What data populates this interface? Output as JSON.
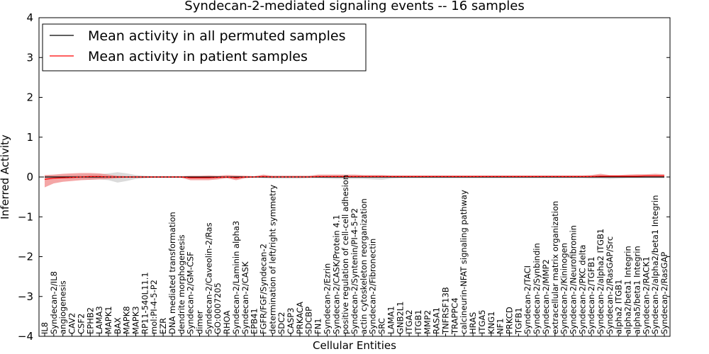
{
  "chart_data": {
    "type": "line",
    "title": "Syndecan-2-mediated signaling events -- 16 samples",
    "xlabel": "Cellular Entities",
    "ylabel": "Inferred Activity",
    "ylim": [
      -4,
      4
    ],
    "yticks": [
      -4,
      -3,
      -2,
      -1,
      0,
      1,
      2,
      3,
      4
    ],
    "ytick_labels": [
      "−4",
      "−3",
      "−2",
      "−1",
      "0",
      "1",
      "2",
      "3",
      "4"
    ],
    "legend_position": "top-left",
    "categories": [
      "IL8",
      "Syndecan-2/IL8",
      "angiogenesis",
      "CAV2",
      "CSF2",
      "EPHB2",
      "LAMA3",
      "MAPK1",
      "BAX",
      "MAPK8",
      "MAPK3",
      "RP11-540L11.1",
      "mol:PI-4-5-P2",
      "EZR",
      "DNA mediated transformation",
      "dendrite morphogenesis",
      "Syndecan-2/GM-CSF",
      "dimer",
      "Syndecan-2/Caveolin-2/Ras",
      "GO:0007205",
      "RHOA",
      "Syndecan-2/Laminin alpha3",
      "Syndecan-2/CASK",
      "EPB41",
      "FGFR/FGF/Syndecan-2",
      "determination of left/right symmetry",
      "SDC2",
      "CASP3",
      "PRKACA",
      "SDCBP",
      "FN1",
      "Syndecan-2/Ezrin",
      "Syndecan-2/CASK/Protein 4.1",
      "positive regulation of cell-cell adhesion",
      "Syndecan-2/Syntenin/PI-4-5-P2",
      "actin cytoskeleton reorganization",
      "Syndecan-2/Fibronectin",
      "SRC",
      "LAMA1",
      "GNB2L1",
      "ITGA2",
      "ITGB1",
      "MMP2",
      "RASA1",
      "TNFRSF13B",
      "TRAPPC4",
      "calcineurin-NFAT signaling pathway",
      "HRAS",
      "ITGA5",
      "KNG1",
      "NF1",
      "PRKCD",
      "TGFB1",
      "Syndecan-2/TACI",
      "Syndecan-2/Synbindin",
      "Syndecan-2/MMP2",
      "extracellular matrix organization",
      "Syndecan-2/Kininogen",
      "Syndecan-2/Neurofibromin",
      "Syndecan-2/PKC delta",
      "Syndecan-2/TGFB1",
      "Syndecan-2/alpha2 ITGB1",
      "Syndecan-2/RasGAP/Src",
      "alpha2 ITGB1",
      "alpha2/beta1 Integrin",
      "alpha5/beta1 Integrin",
      "Syndecan-2/RACK1",
      "Syndecan-2/alpha2/beta1 Integrin",
      "Syndecan-2/RasGAP"
    ],
    "series": [
      {
        "name": "Mean activity in all permuted samples",
        "color": "#000000",
        "band_color": "#c8c8c8",
        "values": [
          0.0,
          0.0,
          0.0,
          0.0,
          0.0,
          0.0,
          0.0,
          0.0,
          0.0,
          0.0,
          0.0,
          0.0,
          0.0,
          0.0,
          0.0,
          0.0,
          0.0,
          0.0,
          0.0,
          0.0,
          0.0,
          0.0,
          0.0,
          0.0,
          0.0,
          0.0,
          0.0,
          0.0,
          0.0,
          0.0,
          0.0,
          0.0,
          0.0,
          0.0,
          0.0,
          0.0,
          0.0,
          0.0,
          0.0,
          0.0,
          0.0,
          0.0,
          0.0,
          0.0,
          0.0,
          0.0,
          0.0,
          0.0,
          0.0,
          0.0,
          0.0,
          0.0,
          0.0,
          0.0,
          0.0,
          0.0,
          0.0,
          0.0,
          0.0,
          0.0,
          0.0,
          0.0,
          0.0,
          0.0,
          0.0,
          0.0,
          0.0,
          0.0,
          0.0
        ],
        "lower": [
          -0.05,
          -0.04,
          -0.04,
          -0.05,
          -0.06,
          -0.07,
          -0.06,
          -0.08,
          -0.14,
          -0.1,
          -0.05,
          -0.03,
          -0.02,
          -0.02,
          -0.02,
          -0.02,
          -0.02,
          -0.02,
          -0.02,
          -0.02,
          -0.02,
          -0.02,
          -0.02,
          -0.02,
          -0.03,
          -0.04,
          -0.04,
          -0.04,
          -0.04,
          -0.03,
          -0.03,
          -0.04,
          -0.05,
          -0.05,
          -0.05,
          -0.05,
          -0.06,
          -0.07,
          -0.04,
          -0.03,
          -0.03,
          -0.03,
          -0.03,
          -0.03,
          -0.03,
          -0.03,
          -0.03,
          -0.03,
          -0.03,
          -0.03,
          -0.03,
          -0.03,
          -0.03,
          -0.03,
          -0.03,
          -0.03,
          -0.03,
          -0.03,
          -0.03,
          -0.03,
          -0.04,
          -0.04,
          -0.05,
          -0.04,
          -0.03,
          -0.03,
          -0.03,
          -0.03,
          -0.03
        ],
        "upper": [
          0.04,
          0.04,
          0.04,
          0.05,
          0.06,
          0.07,
          0.07,
          0.09,
          0.12,
          0.09,
          0.05,
          0.03,
          0.02,
          0.02,
          0.02,
          0.02,
          0.02,
          0.02,
          0.02,
          0.02,
          0.02,
          0.02,
          0.02,
          0.02,
          0.03,
          0.03,
          0.03,
          0.03,
          0.03,
          0.03,
          0.03,
          0.03,
          0.04,
          0.04,
          0.04,
          0.04,
          0.04,
          0.04,
          0.03,
          0.03,
          0.03,
          0.03,
          0.03,
          0.03,
          0.03,
          0.03,
          0.03,
          0.03,
          0.03,
          0.03,
          0.03,
          0.03,
          0.03,
          0.03,
          0.03,
          0.03,
          0.03,
          0.03,
          0.03,
          0.03,
          0.03,
          0.03,
          0.03,
          0.03,
          0.03,
          0.03,
          0.03,
          0.03,
          0.03
        ]
      },
      {
        "name": "Mean activity in patient samples",
        "color": "#ff0000",
        "band_color": "#f08080",
        "values": [
          -0.06,
          -0.03,
          -0.02,
          -0.01,
          0.0,
          0.01,
          0.01,
          0.0,
          0.0,
          0.0,
          0.0,
          0.0,
          0.0,
          0.0,
          0.0,
          0.0,
          -0.02,
          -0.02,
          -0.02,
          -0.01,
          0.0,
          -0.02,
          0.0,
          0.0,
          0.01,
          0.0,
          0.0,
          0.0,
          0.0,
          0.0,
          0.01,
          0.01,
          0.01,
          0.01,
          0.01,
          0.01,
          0.01,
          0.01,
          0.01,
          0.01,
          0.01,
          0.01,
          0.01,
          0.01,
          0.01,
          0.01,
          0.01,
          0.01,
          0.01,
          0.01,
          0.01,
          0.01,
          0.01,
          0.01,
          0.01,
          0.01,
          0.01,
          0.01,
          0.01,
          0.01,
          0.01,
          0.02,
          0.02,
          0.02,
          0.02,
          0.02,
          0.03,
          0.03,
          0.03
        ],
        "lower": [
          -0.26,
          -0.16,
          -0.12,
          -0.1,
          -0.08,
          -0.07,
          -0.06,
          -0.05,
          -0.03,
          -0.02,
          -0.02,
          -0.02,
          -0.02,
          -0.02,
          -0.02,
          -0.02,
          -0.08,
          -0.08,
          -0.08,
          -0.06,
          -0.03,
          -0.08,
          -0.03,
          -0.01,
          -0.01,
          -0.02,
          -0.01,
          -0.01,
          -0.01,
          -0.01,
          -0.01,
          -0.01,
          -0.01,
          -0.01,
          -0.01,
          -0.01,
          -0.01,
          -0.01,
          -0.01,
          -0.01,
          -0.01,
          -0.01,
          -0.01,
          -0.01,
          -0.01,
          -0.01,
          -0.01,
          -0.01,
          -0.01,
          -0.01,
          -0.01,
          -0.01,
          -0.01,
          -0.01,
          -0.01,
          -0.01,
          -0.01,
          -0.01,
          -0.01,
          -0.01,
          -0.01,
          -0.01,
          -0.01,
          -0.01,
          -0.01,
          -0.01,
          -0.01,
          -0.01,
          -0.01
        ],
        "upper": [
          0.05,
          0.06,
          0.08,
          0.09,
          0.1,
          0.1,
          0.09,
          0.06,
          0.03,
          0.02,
          0.02,
          0.02,
          0.02,
          0.02,
          0.02,
          0.02,
          0.03,
          0.03,
          0.04,
          0.03,
          0.05,
          0.04,
          0.03,
          0.02,
          0.06,
          0.03,
          0.03,
          0.03,
          0.03,
          0.03,
          0.06,
          0.06,
          0.06,
          0.06,
          0.06,
          0.05,
          0.05,
          0.05,
          0.04,
          0.04,
          0.04,
          0.04,
          0.04,
          0.04,
          0.04,
          0.04,
          0.04,
          0.04,
          0.04,
          0.04,
          0.04,
          0.04,
          0.04,
          0.04,
          0.04,
          0.04,
          0.04,
          0.04,
          0.04,
          0.04,
          0.05,
          0.08,
          0.05,
          0.05,
          0.06,
          0.07,
          0.07,
          0.08,
          0.07
        ]
      }
    ]
  }
}
